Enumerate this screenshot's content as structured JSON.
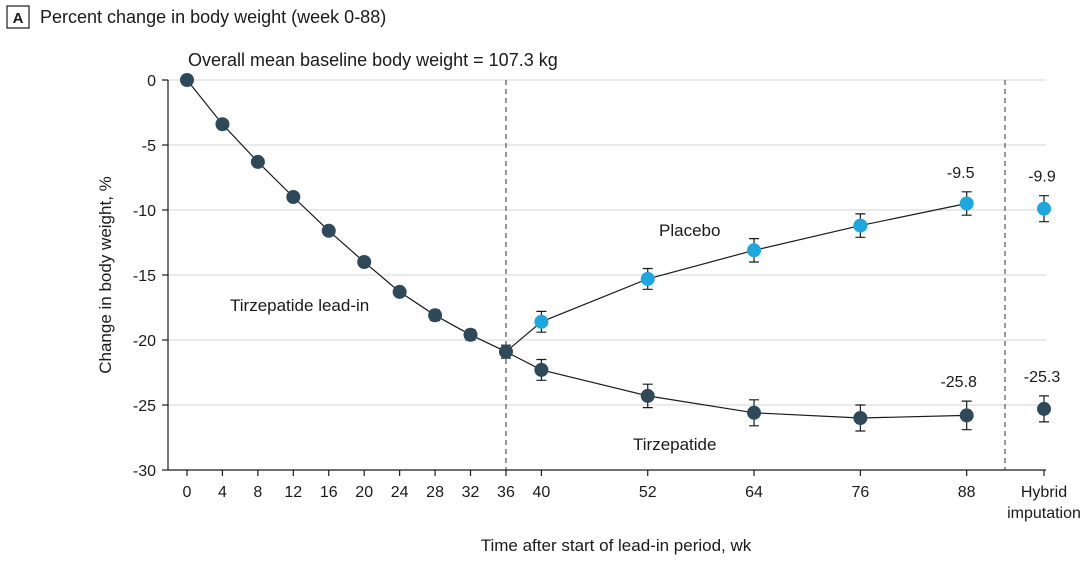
{
  "panel": {
    "letter": "A",
    "title": "Percent change in body weight (week 0-88)",
    "note": "Overall mean baseline body weight = 107.3 kg"
  },
  "colors": {
    "tirzepatide": "#2e4a5a",
    "placebo": "#1ba8e0",
    "line": "#1a1a1a",
    "grid": "#d4d4d4"
  },
  "chart_data": {
    "type": "line",
    "xlabel": "Time after start of lead-in period, wk",
    "ylabel": "Change in body weight, %",
    "ylim": [
      -30,
      0
    ],
    "yticks": [
      0,
      -5,
      -10,
      -15,
      -20,
      -25,
      -30
    ],
    "xticks": [
      "0",
      "4",
      "8",
      "12",
      "16",
      "20",
      "24",
      "28",
      "32",
      "36",
      "40",
      "52",
      "64",
      "76",
      "88"
    ],
    "extra_category": [
      "Hybrid",
      "imputation"
    ],
    "grid": true,
    "series": [
      {
        "name": "Tirzepatide lead-in",
        "weeks": [
          0,
          4,
          8,
          12,
          16,
          20,
          24,
          28,
          32,
          36
        ],
        "values": [
          0,
          -3.4,
          -6.3,
          -9.0,
          -11.6,
          -14.0,
          -16.3,
          -18.1,
          -19.6,
          -20.9
        ],
        "errors": [
          0,
          0.2,
          0.2,
          0.3,
          0.3,
          0.3,
          0.3,
          0.4,
          0.4,
          0.5
        ]
      },
      {
        "name": "Placebo",
        "weeks": [
          36,
          40,
          52,
          64,
          76,
          88
        ],
        "values": [
          -20.9,
          -18.6,
          -15.3,
          -13.1,
          -11.2,
          -9.5
        ],
        "errors": [
          0,
          0.8,
          0.8,
          0.9,
          0.9,
          0.9
        ],
        "hybrid": {
          "value": -9.9,
          "error": 1.0
        }
      },
      {
        "name": "Tirzepatide",
        "weeks": [
          36,
          40,
          52,
          64,
          76,
          88
        ],
        "values": [
          -20.9,
          -22.3,
          -24.3,
          -25.6,
          -26.0,
          -25.8
        ],
        "errors": [
          0,
          0.8,
          0.9,
          1.0,
          1.0,
          1.1
        ],
        "hybrid": {
          "value": -25.3,
          "error": 1.0
        }
      }
    ],
    "data_labels": {
      "placebo_week88": "-9.5",
      "placebo_hybrid": "-9.9",
      "tirzepatide_week88": "-25.8",
      "tirzepatide_hybrid": "-25.3"
    }
  }
}
